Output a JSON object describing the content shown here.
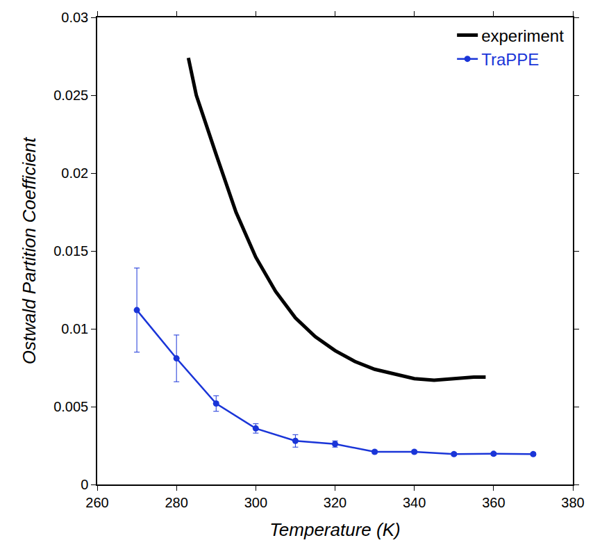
{
  "chart_data": {
    "type": "line",
    "x_label": "Temperature (K)",
    "y_label": "Ostwald Partition Coefficient",
    "xlim": [
      260,
      380
    ],
    "xticks": [
      260,
      280,
      300,
      320,
      340,
      360,
      380
    ],
    "ylim": [
      0,
      0.03
    ],
    "yticks": [
      0,
      0.005,
      0.01,
      0.015,
      0.02,
      0.025,
      0.03
    ],
    "grid": false,
    "legend": "upper right",
    "series": [
      {
        "name": "experiment",
        "color": "#000000",
        "marker": "none",
        "line_style": "solid",
        "x": [
          283,
          285,
          290,
          295,
          300,
          305,
          310,
          315,
          320,
          325,
          330,
          335,
          340,
          345,
          350,
          355,
          358
        ],
        "values": [
          0.0274,
          0.025,
          0.0212,
          0.0175,
          0.0146,
          0.0124,
          0.0107,
          0.0095,
          0.0086,
          0.0079,
          0.0074,
          0.0071,
          0.0068,
          0.0067,
          0.0068,
          0.0069,
          0.0069
        ]
      },
      {
        "name": "TraPPE",
        "color": "#1a35d8",
        "marker": "circle",
        "line_style": "solid",
        "x": [
          270,
          280,
          290,
          300,
          310,
          320,
          330,
          340,
          350,
          360,
          370
        ],
        "values": [
          0.0112,
          0.0081,
          0.0052,
          0.0036,
          0.0028,
          0.0026,
          0.0021,
          0.0021,
          0.00195,
          0.00197,
          0.00195
        ],
        "error": [
          0.0027,
          0.0015,
          0.0005,
          0.0003,
          0.0004,
          0.0002,
          0.0001,
          0.0001,
          0.0001,
          0.0001,
          0.0001
        ]
      }
    ]
  }
}
